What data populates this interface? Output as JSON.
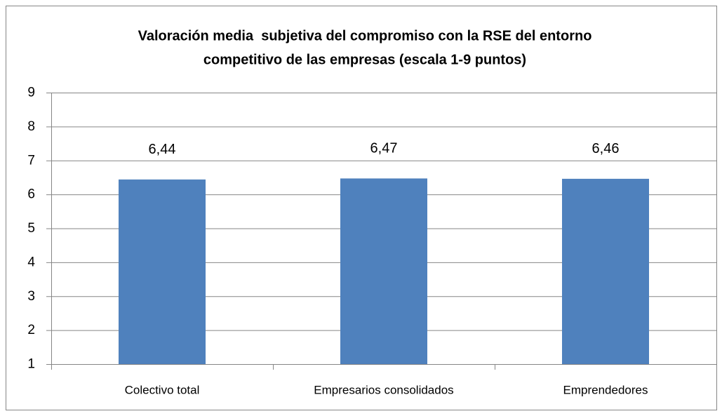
{
  "chart_data": {
    "type": "bar",
    "title": [
      "Valoración media  subjetiva del compromiso con la RSE del entorno",
      "competitivo de las empresas (escala 1-9 puntos)"
    ],
    "categories": [
      "Colectivo total",
      "Empresarios consolidados",
      "Emprendedores"
    ],
    "values": [
      6.44,
      6.47,
      6.46
    ],
    "value_labels": [
      "6,44",
      "6,47",
      "6,46"
    ],
    "color": "#4f81bd",
    "ylim": [
      1,
      9
    ],
    "yticks": [
      1,
      2,
      3,
      4,
      5,
      6,
      7,
      8,
      9
    ],
    "grid": true
  }
}
